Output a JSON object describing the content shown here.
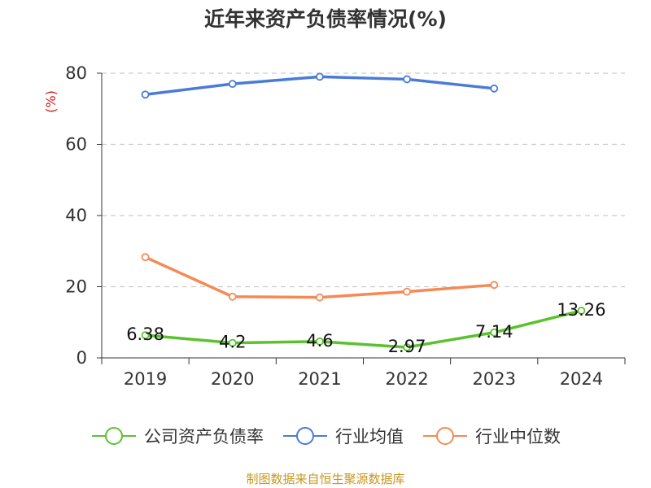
{
  "title": "近年来资产负债率情况(%)",
  "source": "制图数据来自恒生聚源数据库",
  "chart_data": {
    "type": "line",
    "ylabel": "(%)",
    "ylabel_color": "#d01818",
    "categories": [
      "2019",
      "2020",
      "2021",
      "2022",
      "2023",
      "2024"
    ],
    "ylim": [
      0,
      80
    ],
    "yticks": [
      0,
      20,
      40,
      60,
      80
    ],
    "grid": true,
    "legend_position": "bottom",
    "series": [
      {
        "name": "公司资产负债率",
        "color": "#5bc22e",
        "values": [
          6.38,
          4.2,
          4.6,
          2.97,
          7.14,
          13.26
        ],
        "labels": [
          "6.38",
          "4.2",
          "4.6",
          "2.97",
          "7.14",
          "13.26"
        ]
      },
      {
        "name": "行业均值",
        "color": "#4a7bd9",
        "values": [
          74,
          77,
          79,
          78.3,
          75.7,
          null
        ]
      },
      {
        "name": "行业中位数",
        "color": "#f58a55",
        "values": [
          28.3,
          17.2,
          17,
          18.6,
          20.5,
          null
        ]
      }
    ]
  }
}
